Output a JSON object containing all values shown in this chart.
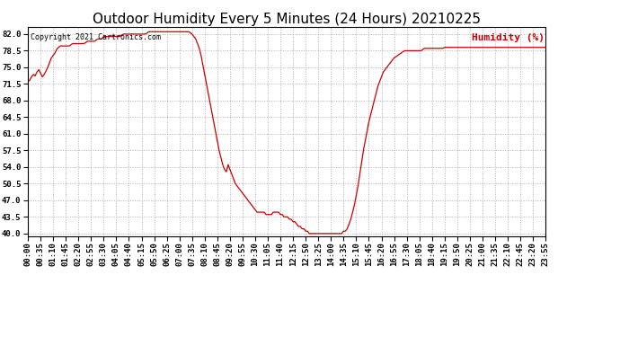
{
  "title": "Outdoor Humidity Every 5 Minutes (24 Hours) 20210225",
  "copyright_text": "Copyright 2021 Cartronics.com",
  "legend_label": "Humidity (%)",
  "line_color": "#cc0000",
  "background_color": "#ffffff",
  "grid_color": "#b0b0b0",
  "ylim": [
    39.5,
    83.5
  ],
  "yticks": [
    40.0,
    43.5,
    47.0,
    50.5,
    54.0,
    57.5,
    61.0,
    64.5,
    68.0,
    71.5,
    75.0,
    78.5,
    82.0
  ],
  "title_fontsize": 11,
  "tick_fontsize": 6.5,
  "humidity_data": [
    72.0,
    72.3,
    73.0,
    73.5,
    73.2,
    74.0,
    74.5,
    73.8,
    73.0,
    73.5,
    74.2,
    75.0,
    76.0,
    77.0,
    77.5,
    78.0,
    78.8,
    79.2,
    79.5,
    79.5,
    79.5,
    79.5,
    79.5,
    79.5,
    79.8,
    80.0,
    80.0,
    80.0,
    80.0,
    80.0,
    80.0,
    80.0,
    80.2,
    80.5,
    80.5,
    80.5,
    80.5,
    80.5,
    80.8,
    81.0,
    81.0,
    81.0,
    81.5,
    81.5,
    81.5,
    81.5,
    81.5,
    81.5,
    81.5,
    81.5,
    81.5,
    81.5,
    81.8,
    82.0,
    82.0,
    82.0,
    82.0,
    82.0,
    82.0,
    82.0,
    82.0,
    82.0,
    82.0,
    82.0,
    82.0,
    82.0,
    82.2,
    82.5,
    82.5,
    82.5,
    82.5,
    82.5,
    82.5,
    82.5,
    82.5,
    82.5,
    82.5,
    82.5,
    82.5,
    82.5,
    82.5,
    82.5,
    82.5,
    82.5,
    82.5,
    82.5,
    82.5,
    82.5,
    82.5,
    82.5,
    82.3,
    82.0,
    81.5,
    81.0,
    80.0,
    79.0,
    77.5,
    75.5,
    73.5,
    71.5,
    69.5,
    67.5,
    65.5,
    63.5,
    61.5,
    59.5,
    57.5,
    56.0,
    54.5,
    53.5,
    53.0,
    54.5,
    53.5,
    52.5,
    51.5,
    50.5,
    50.0,
    49.5,
    49.0,
    48.5,
    48.0,
    47.5,
    47.0,
    46.5,
    46.0,
    45.5,
    45.0,
    44.5,
    44.5,
    44.5,
    44.5,
    44.5,
    44.0,
    44.0,
    44.0,
    44.0,
    44.5,
    44.5,
    44.5,
    44.5,
    44.0,
    44.0,
    43.5,
    43.5,
    43.5,
    43.0,
    43.0,
    42.5,
    42.5,
    42.0,
    41.5,
    41.5,
    41.0,
    41.0,
    40.5,
    40.5,
    40.0,
    40.0,
    40.0,
    40.0,
    40.0,
    40.0,
    40.0,
    40.0,
    40.0,
    40.0,
    40.0,
    40.0,
    40.0,
    40.0,
    40.0,
    40.0,
    40.0,
    40.0,
    40.0,
    40.5,
    40.5,
    41.0,
    42.0,
    43.0,
    44.5,
    46.0,
    48.0,
    50.0,
    52.5,
    55.0,
    57.5,
    59.5,
    61.5,
    63.5,
    65.0,
    66.5,
    68.0,
    69.5,
    71.0,
    72.0,
    73.0,
    74.0,
    74.5,
    75.0,
    75.5,
    76.0,
    76.5,
    77.0,
    77.2,
    77.5,
    77.8,
    78.0,
    78.3,
    78.5,
    78.5,
    78.5,
    78.5,
    78.5,
    78.5,
    78.5,
    78.5,
    78.5,
    78.5,
    78.8,
    79.0,
    79.0,
    79.0,
    79.0,
    79.0,
    79.0,
    79.0,
    79.0,
    79.0,
    79.0,
    79.0,
    79.2,
    79.2,
    79.2,
    79.2,
    79.2,
    79.2,
    79.2,
    79.2,
    79.2,
    79.2,
    79.2,
    79.2,
    79.2,
    79.2,
    79.2,
    79.2,
    79.2,
    79.2,
    79.2,
    79.2,
    79.2,
    79.2,
    79.2,
    79.2,
    79.2,
    79.2,
    79.2,
    79.2,
    79.2,
    79.2,
    79.2,
    79.2,
    79.2,
    79.2,
    79.2,
    79.2,
    79.2,
    79.2,
    79.2,
    79.2,
    79.2,
    79.2,
    79.2,
    79.2,
    79.2,
    79.2,
    79.2,
    79.2,
    79.2,
    79.2,
    79.2,
    79.2,
    79.2,
    79.2,
    79.2,
    79.2,
    79.2,
    79.5,
    79.5
  ]
}
